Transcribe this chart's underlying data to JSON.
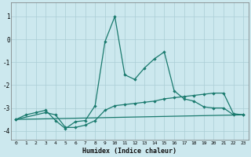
{
  "xlabel": "Humidex (Indice chaleur)",
  "xlim": [
    -0.5,
    23.5
  ],
  "ylim": [
    -4.4,
    1.6
  ],
  "yticks": [
    -4,
    -3,
    -2,
    -1,
    0,
    1
  ],
  "xticks": [
    0,
    1,
    2,
    3,
    4,
    5,
    6,
    7,
    8,
    9,
    10,
    11,
    12,
    13,
    14,
    15,
    16,
    17,
    18,
    19,
    20,
    21,
    22,
    23
  ],
  "bg_color": "#cce8ee",
  "line_color": "#1a7a6e",
  "grid_color": "#aacdd5",
  "line1_x": [
    0,
    1,
    2,
    3,
    4,
    5,
    6,
    7,
    8,
    9,
    10,
    11,
    12,
    13,
    14,
    15,
    16,
    17,
    18,
    19,
    20,
    21,
    22,
    23
  ],
  "line1_y": [
    -3.5,
    -3.3,
    -3.2,
    -3.1,
    -3.55,
    -3.9,
    -3.6,
    -3.55,
    -2.9,
    -0.1,
    1.0,
    -1.55,
    -1.75,
    -1.25,
    -0.85,
    -0.55,
    -2.25,
    -2.6,
    -2.7,
    -2.95,
    -3.0,
    -3.0,
    -3.3,
    -3.3
  ],
  "line2_x": [
    0,
    3,
    4,
    5,
    6,
    7,
    8,
    9,
    10,
    11,
    12,
    13,
    14,
    15,
    16,
    17,
    18,
    19,
    20,
    21,
    22,
    23
  ],
  "line2_y": [
    -3.5,
    -3.2,
    -3.3,
    -3.85,
    -3.85,
    -3.75,
    -3.55,
    -3.1,
    -2.9,
    -2.85,
    -2.8,
    -2.75,
    -2.7,
    -2.6,
    -2.55,
    -2.5,
    -2.45,
    -2.4,
    -2.35,
    -2.35,
    -3.25,
    -3.3
  ],
  "line3_x": [
    0,
    23
  ],
  "line3_y": [
    -3.5,
    -3.3
  ]
}
